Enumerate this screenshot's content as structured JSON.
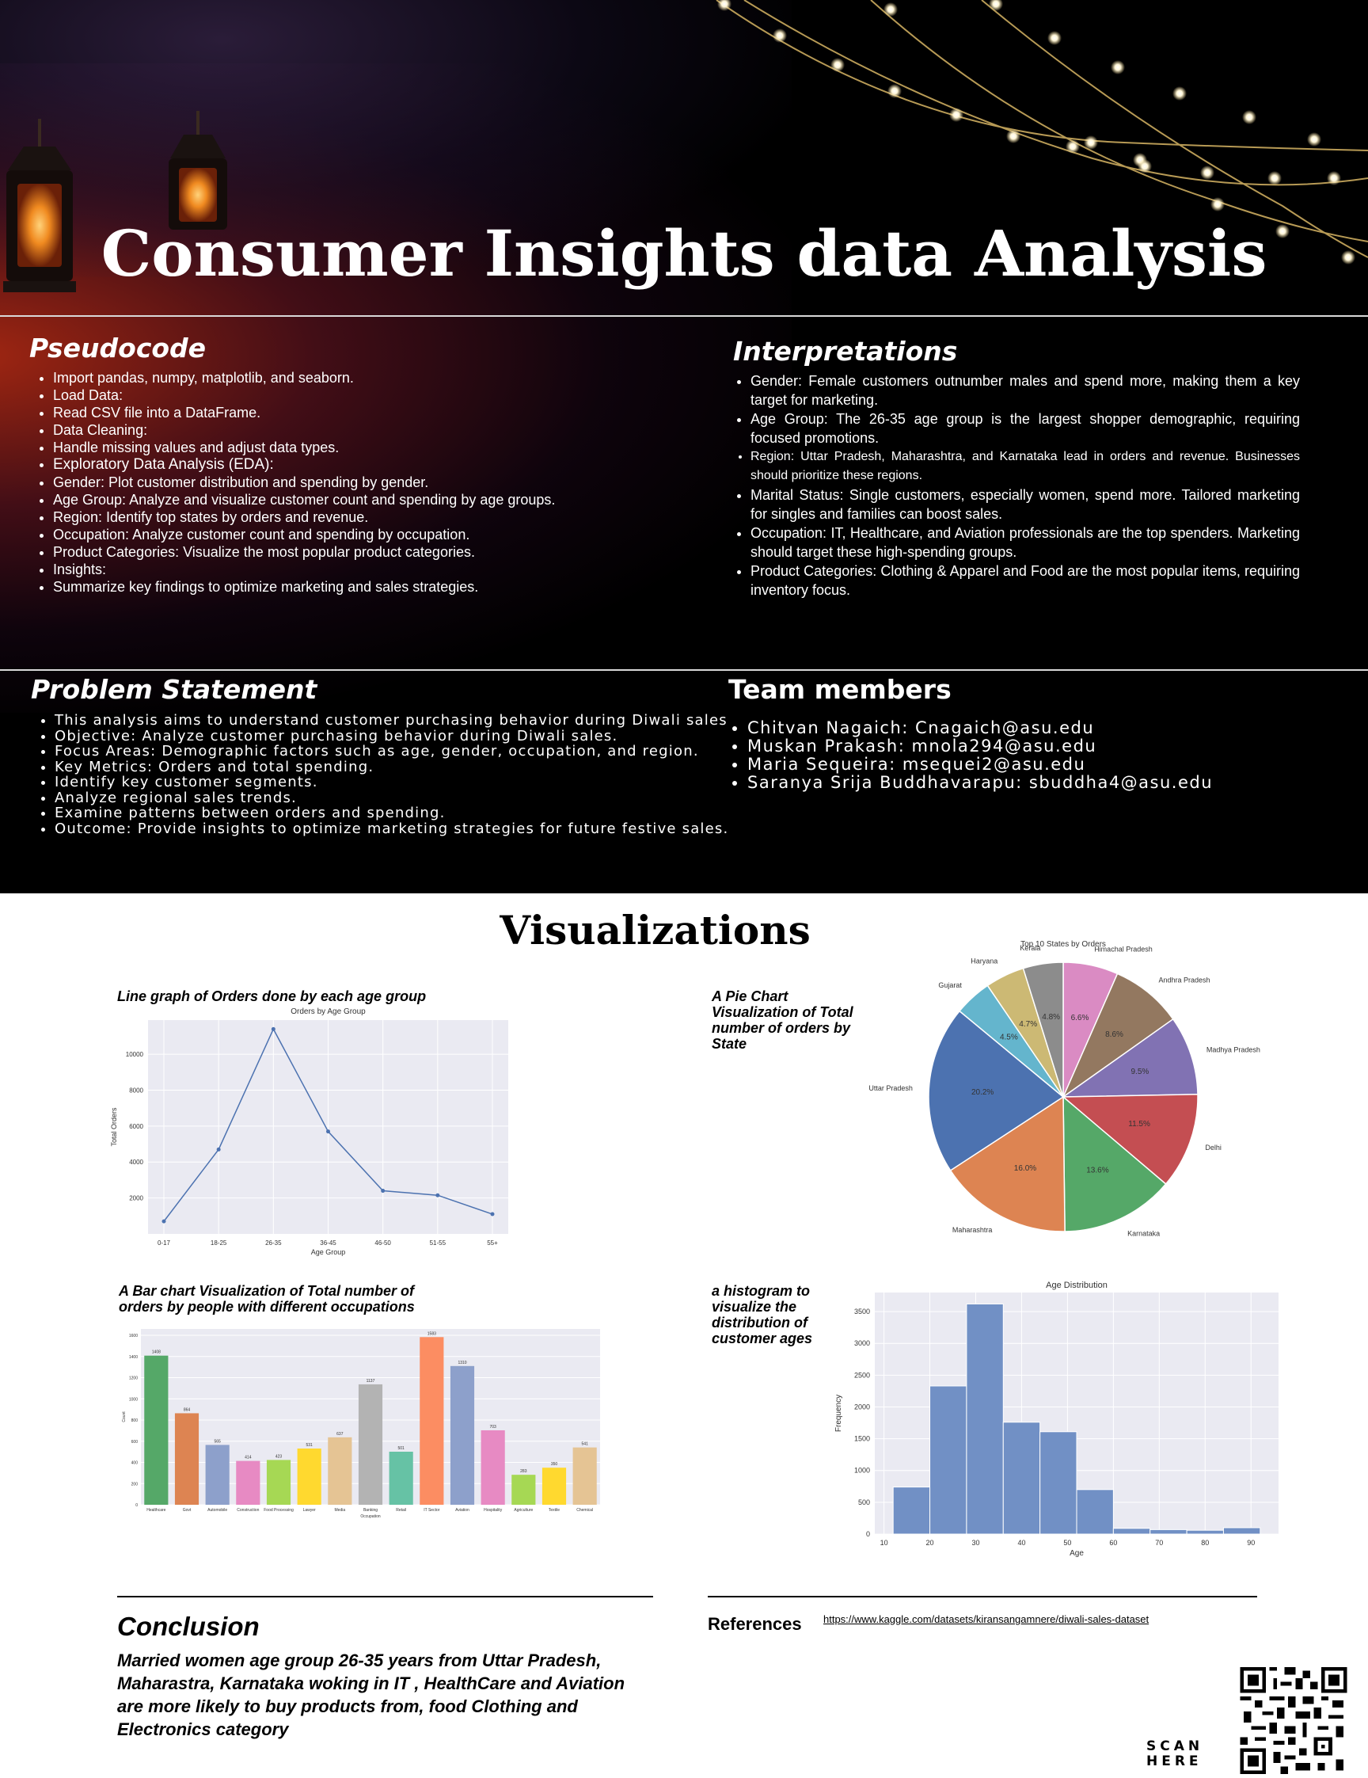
{
  "header": {
    "title": "Consumer Insights data Analysis"
  },
  "pseudocode": {
    "heading": "Pseudocode",
    "items": [
      "Import pandas, numpy, matplotlib, and seaborn.",
      "Load Data:",
      "Read CSV file into a DataFrame.",
      "Data Cleaning:",
      "Handle missing values and adjust data types.",
      "Exploratory Data Analysis (EDA):",
      "Gender: Plot customer distribution and spending by gender.",
      "Age Group: Analyze and visualize customer count and spending by age groups.",
      "Region: Identify top states by orders and revenue.",
      "Occupation: Analyze customer count and spending by occupation.",
      "Product Categories: Visualize the most popular product categories.",
      "Insights:",
      "Summarize key findings to optimize marketing and sales strategies."
    ]
  },
  "interpretations": {
    "heading": "Interpretations",
    "items": [
      "Gender: Female customers outnumber males and spend more, making them a key target for marketing.",
      "Age Group: The 26-35 age group is the largest shopper demographic, requiring focused promotions.",
      "Region: Uttar Pradesh, Maharashtra, and Karnataka lead in orders and revenue. Businesses should prioritize these regions.",
      "Marital Status: Single customers, especially women, spend more. Tailored marketing for singles and families can boost sales.",
      "Occupation: IT, Healthcare, and Aviation professionals are the top spenders. Marketing should target these high-spending groups.",
      "Product Categories: Clothing & Apparel and Food are the most popular items, requiring inventory focus."
    ]
  },
  "problem": {
    "heading": "Problem Statement",
    "items": [
      "This analysis aims to understand customer purchasing behavior during Diwali sales",
      "Objective: Analyze customer purchasing behavior during Diwali sales.",
      "Focus Areas: Demographic factors such as age, gender, occupation, and region.",
      "Key Metrics: Orders and total spending.",
      "Identify key customer segments.",
      "Analyze regional sales trends.",
      "Examine patterns between orders and spending.",
      "Outcome: Provide insights to optimize marketing strategies for future festive sales."
    ]
  },
  "team": {
    "heading": "Team members",
    "members": [
      "Chitvan Nagaich:  Cnagaich@asu.edu",
      "Muskan Prakash:  mnola294@asu.edu",
      "Maria Sequeira: msequei2@asu.edu",
      "Saranya Srija Buddhavarapu:  sbuddha4@asu.edu"
    ]
  },
  "visualizations": {
    "heading": "Visualizations",
    "line_caption": "Line graph of Orders done by each age group",
    "pie_caption": "A Pie Chart Visualization of Total number of orders by State",
    "bar_caption": "A Bar chart Visualization of Total number of orders by people with different occupations",
    "hist_caption": "a histogram to visualize the distribution of customer ages"
  },
  "chart_data": [
    {
      "type": "line",
      "title": "Orders by Age Group",
      "xlabel": "Age Group",
      "ylabel": "Total Orders",
      "categories": [
        "0-17",
        "18-25",
        "26-35",
        "36-45",
        "46-50",
        "51-55",
        "55+"
      ],
      "values": [
        700,
        4700,
        11400,
        5700,
        2400,
        2150,
        1100
      ],
      "yticks": [
        2000,
        4000,
        6000,
        8000,
        10000
      ],
      "ylim": [
        0,
        11900
      ],
      "color": "#4c72b0",
      "grid": true
    },
    {
      "type": "pie",
      "title": "Top 10 States by Orders",
      "slices": [
        {
          "label": "Himachal Pradesh",
          "value": 6.6,
          "pct": "6.6%",
          "color": "#da8bc3"
        },
        {
          "label": "Andhra Pradesh",
          "value": 8.6,
          "pct": "8.6%",
          "color": "#937860"
        },
        {
          "label": "Madhya Pradesh",
          "value": 9.5,
          "pct": "9.5%",
          "color": "#8172b3"
        },
        {
          "label": "Delhi",
          "value": 11.5,
          "pct": "11.5%",
          "color": "#c44e52"
        },
        {
          "label": "Karnataka",
          "value": 13.6,
          "pct": "13.6%",
          "color": "#55a868"
        },
        {
          "label": "Maharashtra",
          "value": 16.0,
          "pct": "16.0%",
          "color": "#dd8452"
        },
        {
          "label": "Uttar Pradesh",
          "value": 20.2,
          "pct": "20.2%",
          "color": "#4c72b0"
        },
        {
          "label": "Gujarat",
          "value": 4.5,
          "pct": "4.5%",
          "color": "#64b5cd"
        },
        {
          "label": "Haryana",
          "value": 4.7,
          "pct": "4.7%",
          "color": "#ccb974"
        },
        {
          "label": "Kerala",
          "value": 4.8,
          "pct": "4.8%",
          "color": "#8c8c8c"
        }
      ]
    },
    {
      "type": "bar",
      "xlabel": "Occupation",
      "ylabel": "Count",
      "categories": [
        "Healthcare",
        "Govt",
        "Automobile",
        "Construction",
        "Food Processing",
        "Lawyer",
        "Media",
        "Banking",
        "Retail",
        "IT Sector",
        "Aviation",
        "Hospitality",
        "Agriculture",
        "Textile",
        "Chemical"
      ],
      "values": [
        1408,
        864,
        565,
        414,
        423,
        531,
        637,
        1137,
        501,
        1583,
        1310,
        703,
        283,
        350,
        541
      ],
      "colors": [
        "#55a868",
        "#dd8452",
        "#8da0cb",
        "#e78ac3",
        "#a6d854",
        "#ffd92f",
        "#e5c494",
        "#b3b3b3",
        "#66c2a5",
        "#fc8d62",
        "#8da0cb",
        "#e78ac3",
        "#a6d854",
        "#ffd92f",
        "#e5c494"
      ],
      "yticks": [
        0,
        200,
        400,
        600,
        800,
        1000,
        1200,
        1400,
        1600
      ],
      "ylim": [
        0,
        1660
      ]
    },
    {
      "type": "bar",
      "subtype": "histogram",
      "title": "Age Distribution",
      "xlabel": "Age",
      "ylabel": "Frequency",
      "bins": [
        {
          "x0": 12,
          "x1": 20,
          "count": 740
        },
        {
          "x0": 20,
          "x1": 28,
          "count": 2330
        },
        {
          "x0": 28,
          "x1": 36,
          "count": 3620
        },
        {
          "x0": 36,
          "x1": 44,
          "count": 1760
        },
        {
          "x0": 44,
          "x1": 52,
          "count": 1610
        },
        {
          "x0": 52,
          "x1": 60,
          "count": 700
        },
        {
          "x0": 60,
          "x1": 68,
          "count": 90
        },
        {
          "x0": 68,
          "x1": 76,
          "count": 70
        },
        {
          "x0": 76,
          "x1": 84,
          "count": 60
        },
        {
          "x0": 84,
          "x1": 92,
          "count": 100
        }
      ],
      "xticks": [
        10,
        20,
        30,
        40,
        50,
        60,
        70,
        80,
        90
      ],
      "yticks": [
        0,
        500,
        1000,
        1500,
        2000,
        2500,
        3000,
        3500
      ],
      "xlim": [
        8,
        96
      ],
      "ylim": [
        0,
        3800
      ],
      "color": "#7190c5",
      "grid": true
    }
  ],
  "conclusion": {
    "heading": "Conclusion",
    "text": "Married women age group 26-35 years from Uttar Pradesh, Maharastra, Karnataka woking in IT , HealthCare and Aviation are more likely to buy products from, food Clothing and Electronics category"
  },
  "references": {
    "heading": "References",
    "link": "https://www.kaggle.com/datasets/kiransangamnere/diwali-sales-dataset"
  },
  "qr": {
    "label": "SCAN HERE"
  }
}
